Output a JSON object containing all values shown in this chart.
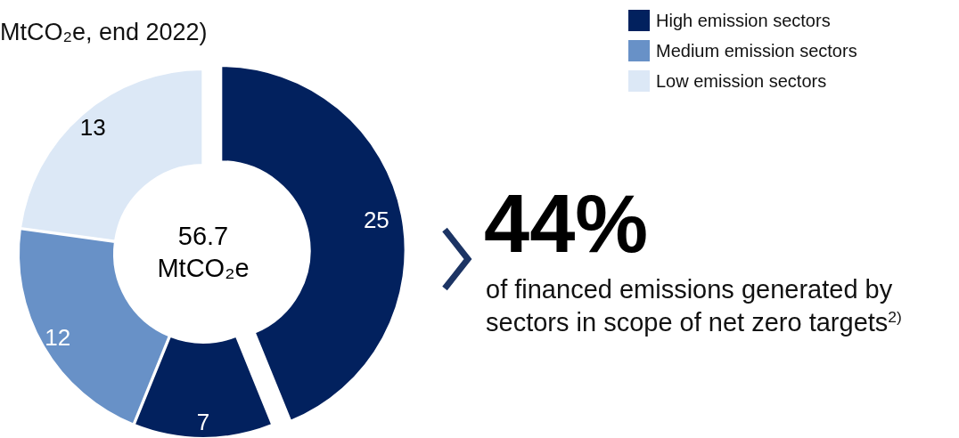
{
  "chart_data": {
    "type": "donut",
    "title": "MtCO₂e, end 2022)",
    "categories": [
      "High emission sectors",
      null,
      "Medium emission sectors",
      "Low emission sectors"
    ],
    "values": [
      25,
      7,
      12,
      13
    ],
    "colors": [
      "#02215e",
      "#02215e",
      "#6891c7",
      "#dce8f6"
    ],
    "data_labels": true,
    "legend": "top right",
    "annotations": [
      "56.7 MtCO₂e",
      "44%",
      "of financed emissions generated by sectors in scope of net zero targets$^{2)}$"
    ]
  }
}
